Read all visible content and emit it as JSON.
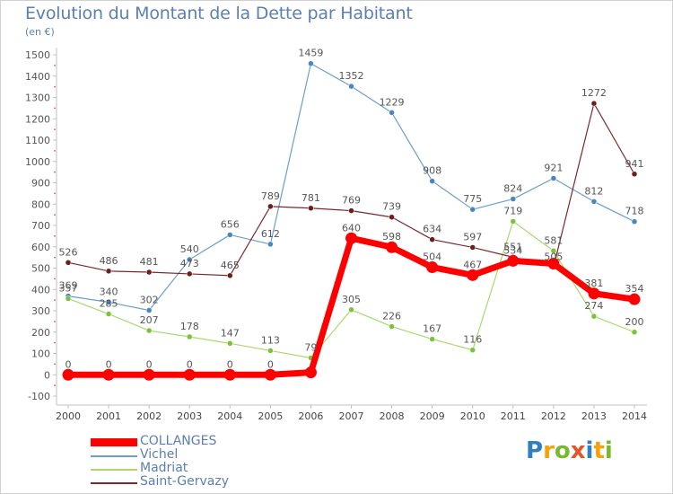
{
  "title": "Evolution du Montant de la Dette par Habitant",
  "subtitle": "(en €)",
  "logo": {
    "text": "Proxiti",
    "colors": [
      "#2f7fc1",
      "#f2a20c",
      "#7cb82f",
      "#e2542b",
      "#2f7fc1",
      "#f2a20c",
      "#7cb82f"
    ]
  },
  "chart_data": {
    "type": "line",
    "title": "Evolution du Montant de la Dette par Habitant",
    "ylabel": "(en €)",
    "x": [
      "2000",
      "2001",
      "2002",
      "2003",
      "2004",
      "2005",
      "2006",
      "2007",
      "2008",
      "2009",
      "2010",
      "2011",
      "2012",
      "2013",
      "2014"
    ],
    "ylim": [
      -100,
      1500
    ],
    "yticks": [
      -100,
      0,
      100,
      200,
      300,
      400,
      500,
      600,
      700,
      800,
      900,
      1000,
      1100,
      1200,
      1300,
      1400,
      1500
    ],
    "grid": false,
    "legend": "bottom-left",
    "series": [
      {
        "name": "COLLANGES",
        "color": "#ff0000",
        "point_color": "#ff0000",
        "values": [
          0,
          0,
          0,
          0,
          0,
          0,
          11,
          640,
          598,
          504,
          467,
          534,
          521,
          381,
          354
        ],
        "labels": [
          "0",
          "0",
          "0",
          "0",
          "0",
          "0",
          "",
          "640",
          "598",
          "504",
          "467",
          "534",
          "",
          "381",
          "354"
        ]
      },
      {
        "name": "Vichel",
        "color": "#6c9ecb",
        "point_color": "#4a86c0",
        "values": [
          369,
          340,
          302,
          540,
          656,
          612,
          1459,
          1352,
          1229,
          908,
          775,
          824,
          921,
          812,
          718
        ],
        "labels": [
          "369",
          "340",
          "302",
          "540",
          "656",
          "612",
          "1459",
          "1352",
          "1229",
          "908",
          "775",
          "824",
          "921",
          "812",
          "718"
        ]
      },
      {
        "name": "Madriat",
        "color": "#a9d86e",
        "point_color": "#7cc23c",
        "values": [
          357,
          285,
          207,
          178,
          147,
          113,
          79,
          305,
          226,
          167,
          116,
          719,
          581,
          274,
          200
        ],
        "labels": [
          "357",
          "285",
          "207",
          "178",
          "147",
          "113",
          "79",
          "305",
          "226",
          "167",
          "116",
          "719",
          "581",
          "274",
          "200"
        ]
      },
      {
        "name": "Saint-Gervazy",
        "color": "#7a2a2a",
        "point_color": "#6a1f1f",
        "values": [
          526,
          486,
          481,
          473,
          465,
          789,
          781,
          769,
          739,
          634,
          597,
          551,
          505,
          1272,
          941
        ],
        "labels": [
          "526",
          "486",
          "481",
          "473",
          "465",
          "789",
          "781",
          "769",
          "739",
          "634",
          "597",
          "551",
          "505",
          "1272",
          "941"
        ]
      }
    ]
  }
}
